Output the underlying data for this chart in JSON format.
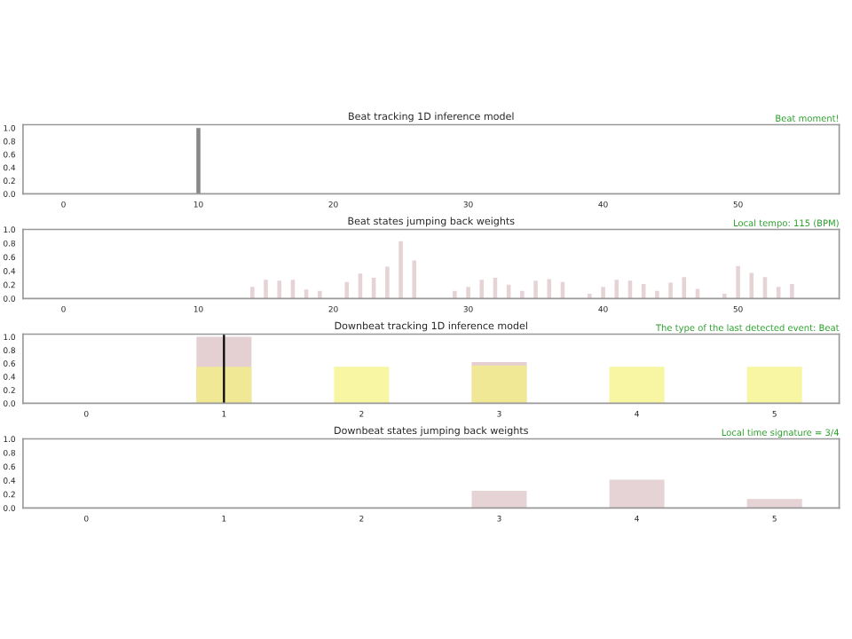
{
  "chart_data": [
    {
      "type": "bar",
      "title": "Beat tracking 1D inference model",
      "annotations": [
        "Beat moment!"
      ],
      "series": [
        {
          "color": "#555555",
          "x": [
            10
          ],
          "values": [
            1.0
          ]
        }
      ],
      "xlim": [
        -3,
        57.5
      ],
      "xticks": [
        0,
        10,
        20,
        30,
        40,
        50
      ],
      "ylim": [
        0,
        1.05
      ],
      "yticks": [
        {
          "value": 0,
          "label": "0.0"
        },
        {
          "value": 0.2,
          "label": "0.2"
        },
        {
          "value": 0.4,
          "label": "0.4"
        },
        {
          "value": 0.6,
          "label": "0.6"
        },
        {
          "value": 0.8,
          "label": "0.8"
        },
        {
          "value": 1.0,
          "label": "1.0"
        }
      ]
    },
    {
      "type": "bar",
      "title": "Beat states jumping back weights",
      "annotations": [
        "Local tempo: 115 (BPM)"
      ],
      "series": [
        {
          "color": "#dcc0c4",
          "x": [
            14,
            15,
            16,
            17,
            18,
            19,
            21,
            22,
            23,
            24,
            25,
            26,
            29,
            30,
            31,
            32,
            33,
            34,
            35,
            36,
            37,
            39,
            40,
            41,
            42,
            43,
            44,
            45,
            46,
            47,
            49,
            50,
            51,
            52,
            53,
            54
          ],
          "values": [
            0.17,
            0.27,
            0.26,
            0.27,
            0.13,
            0.11,
            0.24,
            0.36,
            0.3,
            0.46,
            0.83,
            0.55,
            0.11,
            0.17,
            0.27,
            0.3,
            0.2,
            0.11,
            0.26,
            0.28,
            0.24,
            0.07,
            0.17,
            0.27,
            0.26,
            0.21,
            0.11,
            0.23,
            0.31,
            0.14,
            0.07,
            0.47,
            0.37,
            0.31,
            0.17,
            0.21
          ]
        }
      ],
      "xlim": [
        -3,
        57.5
      ],
      "xticks": [
        0,
        10,
        20,
        30,
        40,
        50
      ],
      "ylim": [
        0,
        1.0
      ],
      "yticks": [
        {
          "value": 0,
          "label": "0.0"
        },
        {
          "value": 0.2,
          "label": "0.2"
        },
        {
          "value": 0.4,
          "label": "0.4"
        },
        {
          "value": 0.6,
          "label": "0.6"
        },
        {
          "value": 0.8,
          "label": "0.8"
        },
        {
          "value": 1.0,
          "label": "1.0"
        }
      ]
    },
    {
      "type": "bar",
      "title": "Downbeat tracking 1D inference model",
      "annotations": [
        "The type of the last detected event: Beat"
      ],
      "series": [
        {
          "color": "#d8bcc0",
          "x": [
            1,
            3
          ],
          "values": [
            1.0,
            0.62
          ]
        },
        {
          "color": "#f5f27a",
          "x": [
            1,
            2,
            3,
            4,
            5
          ],
          "values": [
            0.55,
            0.55,
            0.57,
            0.55,
            0.55
          ]
        }
      ],
      "ref_lines": [
        {
          "axis": "x",
          "value": 1,
          "color": "#000000"
        }
      ],
      "xlim": [
        -0.46,
        5.47
      ],
      "xticks": [
        0,
        1,
        2,
        3,
        4,
        5
      ],
      "ylim": [
        0,
        1.04
      ],
      "yticks": [
        {
          "value": 0,
          "label": "0.0"
        },
        {
          "value": 0.2,
          "label": "0.2"
        },
        {
          "value": 0.4,
          "label": "0.4"
        },
        {
          "value": 0.6,
          "label": "0.6"
        },
        {
          "value": 0.8,
          "label": "0.8"
        },
        {
          "value": 1.0,
          "label": "1.0"
        }
      ]
    },
    {
      "type": "bar",
      "title": "Downbeat states jumping back weights",
      "annotations": [
        "Local time signature = 3/4"
      ],
      "series": [
        {
          "color": "#dcc0c4",
          "x": [
            3,
            4,
            5
          ],
          "values": [
            0.25,
            0.41,
            0.13
          ]
        }
      ],
      "xlim": [
        -0.46,
        5.47
      ],
      "xticks": [
        0,
        1,
        2,
        3,
        4,
        5
      ],
      "ylim": [
        0,
        1.0
      ],
      "yticks": [
        {
          "value": 0,
          "label": "0.0"
        },
        {
          "value": 0.2,
          "label": "0.2"
        },
        {
          "value": 0.4,
          "label": "0.4"
        },
        {
          "value": 0.6,
          "label": "0.6"
        },
        {
          "value": 0.8,
          "label": "0.8"
        },
        {
          "value": 1.0,
          "label": "1.0"
        }
      ]
    }
  ]
}
